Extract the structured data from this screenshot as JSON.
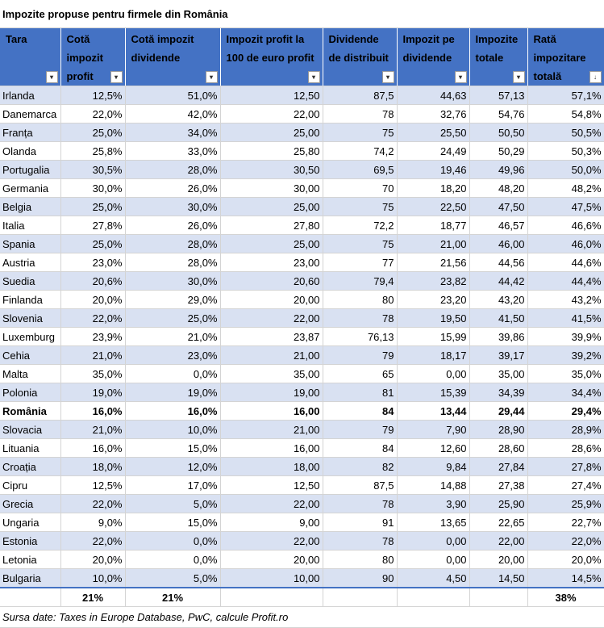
{
  "title": "Impozite propuse pentru firmele din România",
  "headers": [
    "Tara",
    "Cotă impozit profit",
    "Cotă impozit dividende",
    "Impozit profit la 100 de euro profit",
    "Dividende de distribuit",
    "Impozit pe dividende",
    "Impozite totale",
    "Rată impozitare totală"
  ],
  "filter_icon": "filter-dropdown-icon",
  "sort_icon": "sort-descending-filter-icon",
  "rows": [
    [
      "Irlanda",
      "12,5%",
      "51,0%",
      "12,50",
      "87,5",
      "44,63",
      "57,13",
      "57,1%"
    ],
    [
      "Danemarca",
      "22,0%",
      "42,0%",
      "22,00",
      "78",
      "32,76",
      "54,76",
      "54,8%"
    ],
    [
      "Franța",
      "25,0%",
      "34,0%",
      "25,00",
      "75",
      "25,50",
      "50,50",
      "50,5%"
    ],
    [
      "Olanda",
      "25,8%",
      "33,0%",
      "25,80",
      "74,2",
      "24,49",
      "50,29",
      "50,3%"
    ],
    [
      "Portugalia",
      "30,5%",
      "28,0%",
      "30,50",
      "69,5",
      "19,46",
      "49,96",
      "50,0%"
    ],
    [
      "Germania",
      "30,0%",
      "26,0%",
      "30,00",
      "70",
      "18,20",
      "48,20",
      "48,2%"
    ],
    [
      "Belgia",
      "25,0%",
      "30,0%",
      "25,00",
      "75",
      "22,50",
      "47,50",
      "47,5%"
    ],
    [
      "Italia",
      "27,8%",
      "26,0%",
      "27,80",
      "72,2",
      "18,77",
      "46,57",
      "46,6%"
    ],
    [
      "Spania",
      "25,0%",
      "28,0%",
      "25,00",
      "75",
      "21,00",
      "46,00",
      "46,0%"
    ],
    [
      "Austria",
      "23,0%",
      "28,0%",
      "23,00",
      "77",
      "21,56",
      "44,56",
      "44,6%"
    ],
    [
      "Suedia",
      "20,6%",
      "30,0%",
      "20,60",
      "79,4",
      "23,82",
      "44,42",
      "44,4%"
    ],
    [
      "Finlanda",
      "20,0%",
      "29,0%",
      "20,00",
      "80",
      "23,20",
      "43,20",
      "43,2%"
    ],
    [
      "Slovenia",
      "22,0%",
      "25,0%",
      "22,00",
      "78",
      "19,50",
      "41,50",
      "41,5%"
    ],
    [
      "Luxemburg",
      "23,9%",
      "21,0%",
      "23,87",
      "76,13",
      "15,99",
      "39,86",
      "39,9%"
    ],
    [
      "Cehia",
      "21,0%",
      "23,0%",
      "21,00",
      "79",
      "18,17",
      "39,17",
      "39,2%"
    ],
    [
      "Malta",
      "35,0%",
      "0,0%",
      "35,00",
      "65",
      "0,00",
      "35,00",
      "35,0%"
    ],
    [
      "Polonia",
      "19,0%",
      "19,0%",
      "19,00",
      "81",
      "15,39",
      "34,39",
      "34,4%"
    ],
    [
      "România",
      "16,0%",
      "16,0%",
      "16,00",
      "84",
      "13,44",
      "29,44",
      "29,4%"
    ],
    [
      "Slovacia",
      "21,0%",
      "10,0%",
      "21,00",
      "79",
      "7,90",
      "28,90",
      "28,9%"
    ],
    [
      "Lituania",
      "16,0%",
      "15,0%",
      "16,00",
      "84",
      "12,60",
      "28,60",
      "28,6%"
    ],
    [
      "Croația",
      "18,0%",
      "12,0%",
      "18,00",
      "82",
      "9,84",
      "27,84",
      "27,8%"
    ],
    [
      "Cipru",
      "12,5%",
      "17,0%",
      "12,50",
      "87,5",
      "14,88",
      "27,38",
      "27,4%"
    ],
    [
      "Grecia",
      "22,0%",
      "5,0%",
      "22,00",
      "78",
      "3,90",
      "25,90",
      "25,9%"
    ],
    [
      "Ungaria",
      "9,0%",
      "15,0%",
      "9,00",
      "91",
      "13,65",
      "22,65",
      "22,7%"
    ],
    [
      "Estonia",
      "22,0%",
      "0,0%",
      "22,00",
      "78",
      "0,00",
      "22,00",
      "22,0%"
    ],
    [
      "Letonia",
      "20,0%",
      "0,0%",
      "20,00",
      "80",
      "0,00",
      "20,00",
      "20,0%"
    ],
    [
      "Bulgaria",
      "10,0%",
      "5,0%",
      "10,00",
      "90",
      "4,50",
      "14,50",
      "14,5%"
    ]
  ],
  "highlight_row": "România",
  "totals": {
    "cota_profit": "21%",
    "cota_dividende": "21%",
    "rata_totala": "38%"
  },
  "source": "Sursa date: Taxes in Europe Database, PwC, calcule Profit.ro",
  "colors": {
    "header_bg": "#4472c4",
    "band": "#d9e1f2",
    "header_text": "#ffffff"
  }
}
